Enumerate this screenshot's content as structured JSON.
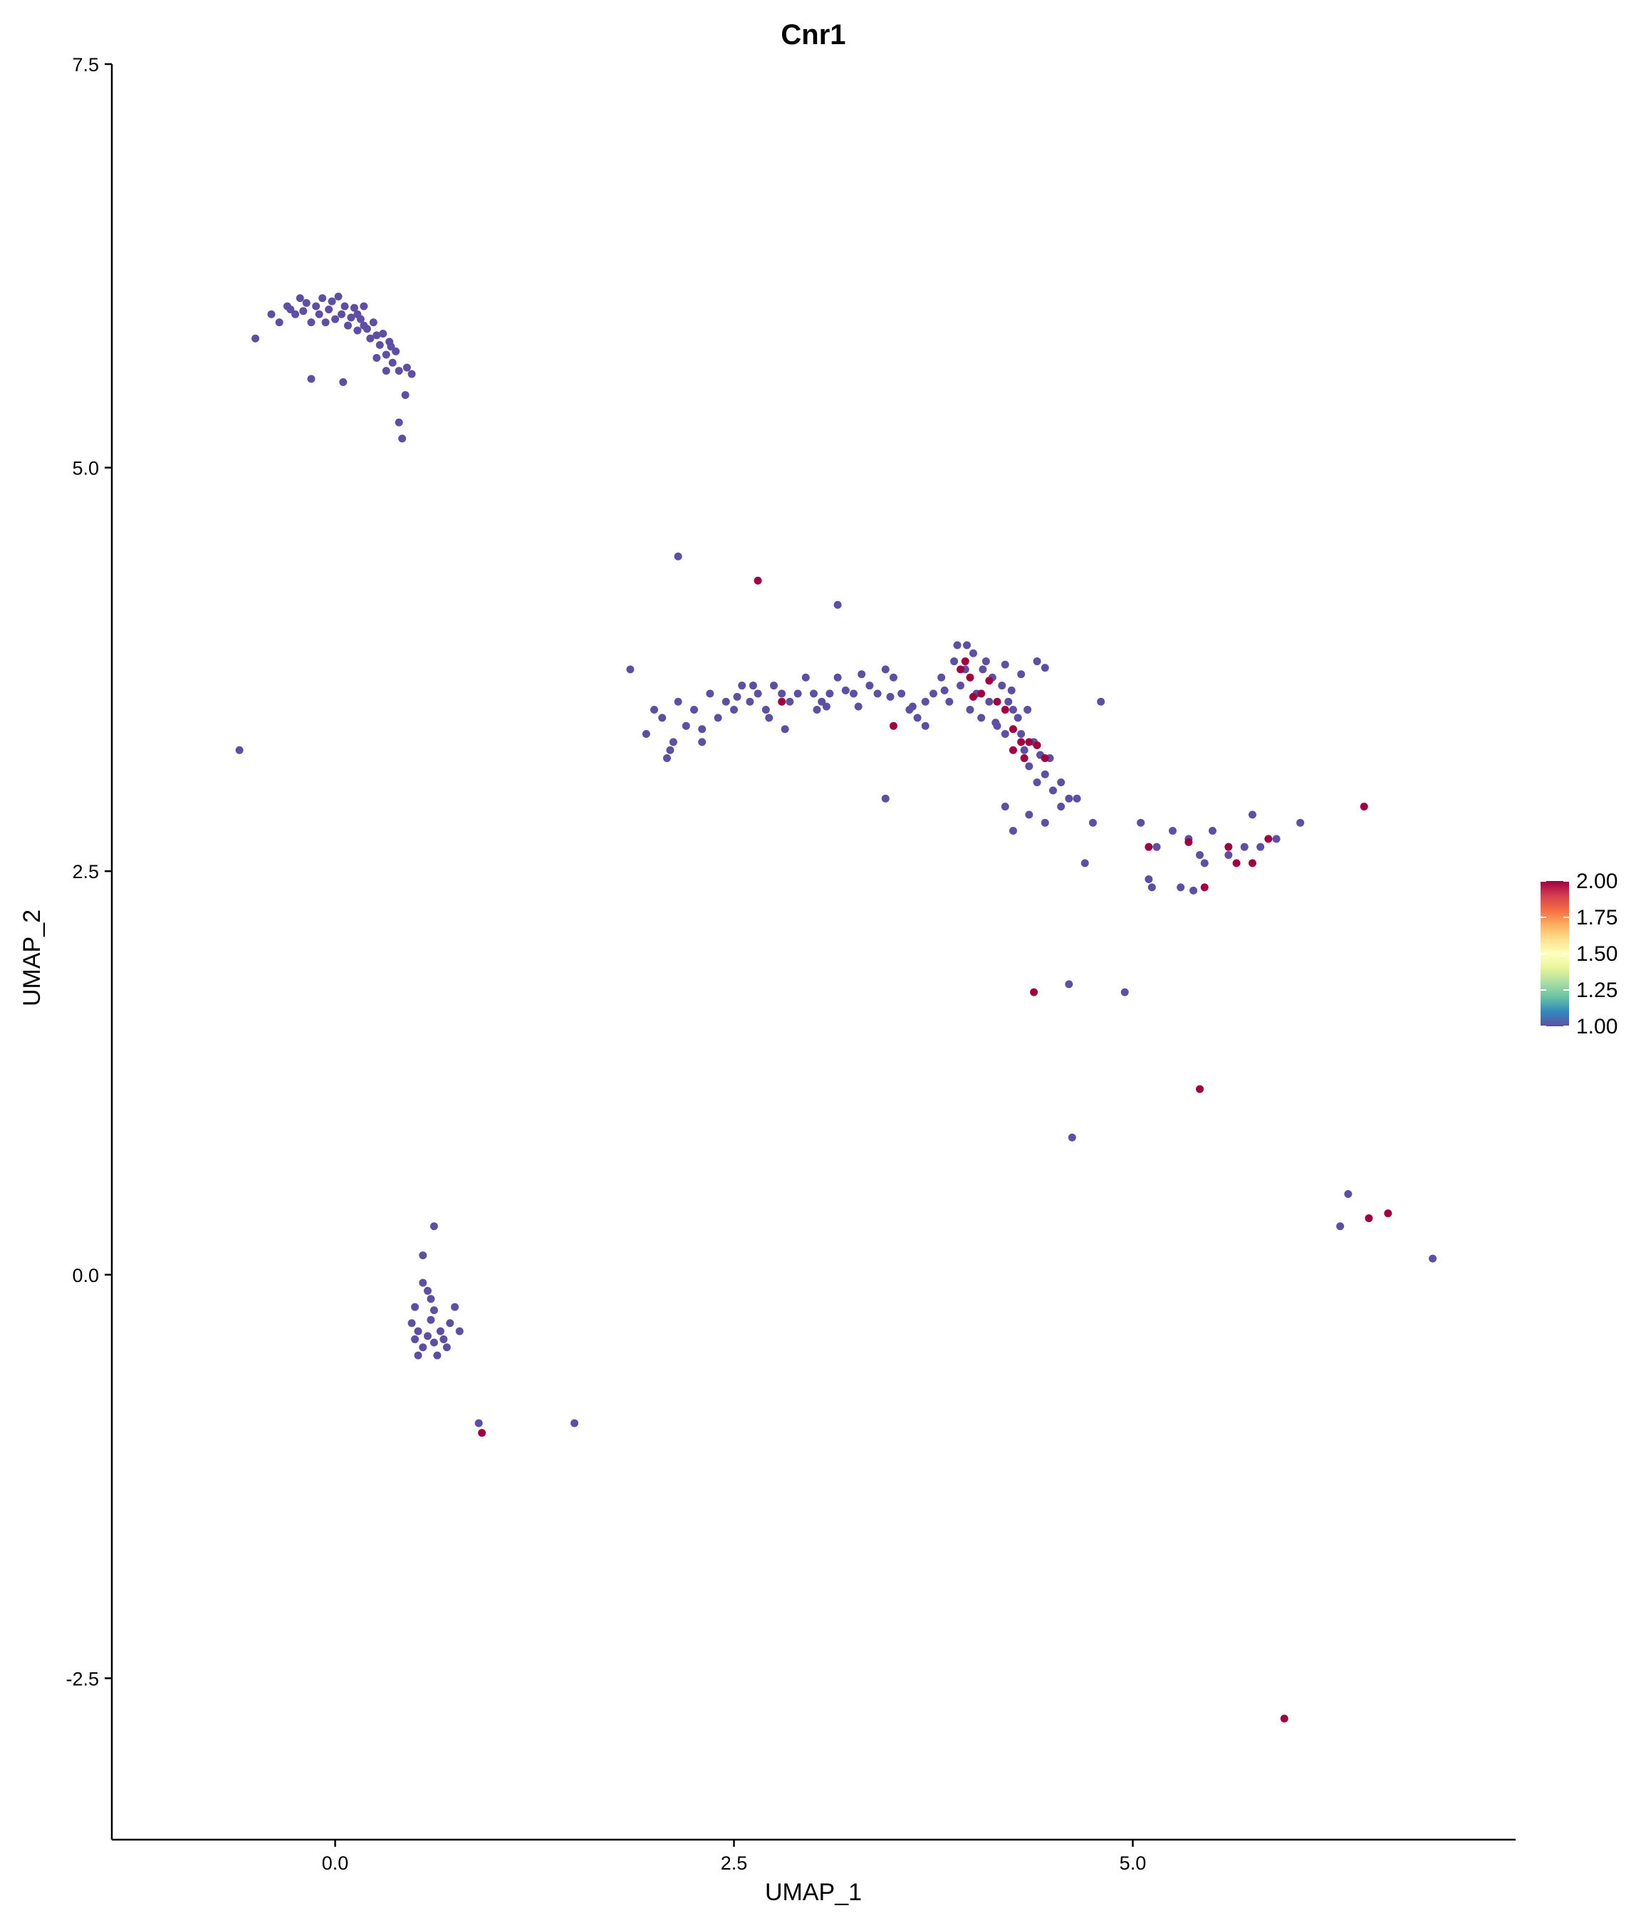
{
  "chart_data": {
    "type": "scatter",
    "title": "Cnr1",
    "xlabel": "UMAP_1",
    "ylabel": "UMAP_2",
    "xlim": [
      -1.4,
      7.4
    ],
    "ylim": [
      -3.5,
      7.5
    ],
    "xticks": [
      0.0,
      2.5,
      5.0
    ],
    "xtick_labels": [
      "0.0",
      "2.5",
      "5.0"
    ],
    "yticks": [
      -2.5,
      0.0,
      2.5,
      5.0,
      7.5
    ],
    "ytick_labels": [
      "-2.5",
      "0.0",
      "2.5",
      "5.0",
      "7.5"
    ],
    "grid": false,
    "legend": {
      "placement": "right",
      "type": "colorbar",
      "min": 1.0,
      "max": 2.0,
      "ticks": [
        1.0,
        1.25,
        1.5,
        1.75,
        2.0
      ],
      "tick_labels": [
        "1.00",
        "1.25",
        "1.50",
        "1.75",
        "2.00"
      ],
      "palette": [
        "#5e4fa2",
        "#3288bd",
        "#66c2a5",
        "#abdda4",
        "#e6f598",
        "#ffffbf",
        "#fee08b",
        "#fdae61",
        "#f46d43",
        "#d53e4f",
        "#9e0142"
      ]
    },
    "colors": {
      "low": "#5e4fa2",
      "high": "#9e0142"
    },
    "point_groups": [
      {
        "expression": 1.0,
        "points": [
          [
            -0.6,
            3.25
          ],
          [
            -0.5,
            5.8
          ],
          [
            -0.4,
            5.95
          ],
          [
            -0.35,
            5.9
          ],
          [
            -0.3,
            6.0
          ],
          [
            -0.25,
            5.95
          ],
          [
            -0.22,
            6.05
          ],
          [
            -0.2,
            5.97
          ],
          [
            -0.18,
            6.02
          ],
          [
            -0.15,
            5.9
          ],
          [
            -0.12,
            6.0
          ],
          [
            -0.1,
            5.95
          ],
          [
            -0.08,
            6.05
          ],
          [
            -0.06,
            5.9
          ],
          [
            -0.04,
            5.98
          ],
          [
            -0.02,
            6.03
          ],
          [
            0.0,
            5.92
          ],
          [
            0.02,
            6.06
          ],
          [
            0.04,
            5.95
          ],
          [
            0.06,
            6.0
          ],
          [
            0.08,
            5.88
          ],
          [
            0.1,
            5.93
          ],
          [
            0.12,
            5.99
          ],
          [
            0.14,
            5.85
          ],
          [
            0.16,
            5.92
          ],
          [
            0.18,
            6.0
          ],
          [
            0.2,
            5.86
          ],
          [
            0.22,
            5.8
          ],
          [
            0.24,
            5.9
          ],
          [
            0.26,
            5.82
          ],
          [
            0.28,
            5.76
          ],
          [
            0.3,
            5.83
          ],
          [
            0.32,
            5.7
          ],
          [
            0.34,
            5.78
          ],
          [
            0.36,
            5.65
          ],
          [
            0.38,
            5.72
          ],
          [
            0.4,
            5.6
          ],
          [
            0.45,
            5.62
          ],
          [
            0.48,
            5.58
          ],
          [
            0.4,
            5.28
          ],
          [
            0.42,
            5.18
          ],
          [
            -0.15,
            5.55
          ],
          [
            0.05,
            5.53
          ],
          [
            0.32,
            5.6
          ],
          [
            0.44,
            5.45
          ],
          [
            0.26,
            5.68
          ],
          [
            0.14,
            5.95
          ],
          [
            -0.28,
            5.98
          ],
          [
            0.35,
            5.75
          ],
          [
            0.18,
            5.88
          ],
          [
            1.85,
            3.75
          ],
          [
            1.95,
            3.35
          ],
          [
            2.0,
            3.5
          ],
          [
            2.05,
            3.45
          ],
          [
            2.1,
            3.25
          ],
          [
            2.08,
            3.2
          ],
          [
            2.12,
            3.3
          ],
          [
            2.15,
            3.55
          ],
          [
            2.2,
            3.4
          ],
          [
            2.25,
            3.5
          ],
          [
            2.3,
            3.3
          ],
          [
            2.35,
            3.6
          ],
          [
            2.4,
            3.45
          ],
          [
            2.45,
            3.55
          ],
          [
            2.5,
            3.5
          ],
          [
            2.55,
            3.65
          ],
          [
            2.6,
            3.55
          ],
          [
            2.62,
            3.65
          ],
          [
            2.65,
            3.6
          ],
          [
            2.7,
            3.5
          ],
          [
            2.72,
            3.45
          ],
          [
            2.75,
            3.65
          ],
          [
            2.8,
            3.6
          ],
          [
            2.85,
            3.55
          ],
          [
            2.9,
            3.6
          ],
          [
            2.95,
            3.7
          ],
          [
            3.0,
            3.6
          ],
          [
            3.02,
            3.5
          ],
          [
            3.05,
            3.55
          ],
          [
            3.1,
            3.6
          ],
          [
            3.15,
            3.7
          ],
          [
            3.2,
            3.62
          ],
          [
            3.25,
            3.6
          ],
          [
            3.3,
            3.72
          ],
          [
            3.35,
            3.65
          ],
          [
            3.4,
            3.6
          ],
          [
            3.45,
            3.75
          ],
          [
            3.5,
            3.7
          ],
          [
            3.55,
            3.6
          ],
          [
            3.6,
            3.5
          ],
          [
            3.65,
            3.45
          ],
          [
            3.7,
            3.55
          ],
          [
            3.75,
            3.6
          ],
          [
            3.8,
            3.7
          ],
          [
            3.85,
            3.55
          ],
          [
            3.88,
            3.8
          ],
          [
            3.9,
            3.9
          ],
          [
            3.92,
            3.65
          ],
          [
            3.95,
            3.75
          ],
          [
            3.98,
            3.5
          ],
          [
            4.0,
            3.85
          ],
          [
            4.02,
            3.6
          ],
          [
            4.05,
            3.45
          ],
          [
            4.08,
            3.8
          ],
          [
            4.1,
            3.55
          ],
          [
            4.12,
            3.7
          ],
          [
            4.15,
            3.4
          ],
          [
            4.18,
            3.65
          ],
          [
            4.2,
            3.35
          ],
          [
            4.22,
            3.55
          ],
          [
            4.25,
            3.5
          ],
          [
            4.28,
            3.45
          ],
          [
            4.3,
            3.35
          ],
          [
            4.32,
            3.25
          ],
          [
            4.35,
            3.15
          ],
          [
            4.38,
            3.3
          ],
          [
            4.4,
            3.05
          ],
          [
            4.45,
            3.1
          ],
          [
            4.48,
            3.2
          ],
          [
            4.5,
            3.0
          ],
          [
            4.55,
            3.05
          ],
          [
            4.6,
            2.95
          ],
          [
            4.2,
            3.78
          ],
          [
            4.3,
            3.72
          ],
          [
            4.4,
            3.8
          ],
          [
            4.45,
            3.76
          ],
          [
            4.2,
            2.9
          ],
          [
            4.25,
            2.75
          ],
          [
            4.35,
            2.85
          ],
          [
            4.45,
            2.8
          ],
          [
            4.55,
            2.9
          ],
          [
            4.65,
            2.95
          ],
          [
            4.7,
            2.55
          ],
          [
            4.8,
            3.55
          ],
          [
            4.75,
            2.8
          ],
          [
            3.45,
            2.95
          ],
          [
            3.15,
            4.15
          ],
          [
            2.15,
            4.45
          ],
          [
            3.7,
            3.4
          ],
          [
            3.82,
            3.62
          ],
          [
            3.96,
            3.9
          ],
          [
            4.06,
            3.75
          ],
          [
            4.14,
            3.42
          ],
          [
            4.24,
            3.62
          ],
          [
            4.34,
            3.5
          ],
          [
            4.42,
            3.22
          ],
          [
            2.3,
            3.38
          ],
          [
            2.52,
            3.58
          ],
          [
            2.82,
            3.38
          ],
          [
            3.08,
            3.52
          ],
          [
            3.28,
            3.52
          ],
          [
            3.48,
            3.58
          ],
          [
            3.62,
            3.52
          ],
          [
            5.05,
            2.8
          ],
          [
            5.1,
            2.45
          ],
          [
            5.12,
            2.4
          ],
          [
            5.15,
            2.65
          ],
          [
            5.25,
            2.75
          ],
          [
            5.3,
            2.4
          ],
          [
            5.35,
            2.7
          ],
          [
            5.38,
            2.38
          ],
          [
            5.42,
            2.6
          ],
          [
            5.45,
            2.55
          ],
          [
            5.5,
            2.75
          ],
          [
            5.6,
            2.6
          ],
          [
            5.75,
            2.85
          ],
          [
            5.7,
            2.65
          ],
          [
            5.8,
            2.65
          ],
          [
            5.9,
            2.7
          ],
          [
            6.05,
            2.8
          ],
          [
            4.6,
            1.8
          ],
          [
            4.95,
            1.75
          ],
          [
            4.62,
            0.85
          ],
          [
            6.35,
            0.5
          ],
          [
            6.3,
            0.3
          ],
          [
            6.88,
            0.1
          ],
          [
            0.62,
            0.3
          ],
          [
            0.55,
            0.12
          ],
          [
            0.5,
            -0.2
          ],
          [
            0.48,
            -0.3
          ],
          [
            0.52,
            -0.35
          ],
          [
            0.55,
            -0.45
          ],
          [
            0.58,
            -0.38
          ],
          [
            0.6,
            -0.28
          ],
          [
            0.62,
            -0.42
          ],
          [
            0.64,
            -0.5
          ],
          [
            0.66,
            -0.35
          ],
          [
            0.68,
            -0.4
          ],
          [
            0.7,
            -0.45
          ],
          [
            0.72,
            -0.3
          ],
          [
            0.75,
            -0.2
          ],
          [
            0.78,
            -0.35
          ],
          [
            0.55,
            -0.05
          ],
          [
            0.58,
            -0.1
          ],
          [
            0.6,
            -0.15
          ],
          [
            0.62,
            -0.22
          ],
          [
            0.52,
            -0.5
          ],
          [
            0.5,
            -0.4
          ],
          [
            0.9,
            -0.92
          ],
          [
            1.5,
            -0.92
          ]
        ]
      },
      {
        "expression": 2.0,
        "points": [
          [
            2.65,
            4.3
          ],
          [
            2.8,
            3.55
          ],
          [
            3.5,
            3.4
          ],
          [
            3.95,
            3.8
          ],
          [
            3.98,
            3.7
          ],
          [
            4.0,
            3.58
          ],
          [
            4.05,
            3.6
          ],
          [
            4.1,
            3.68
          ],
          [
            4.15,
            3.55
          ],
          [
            4.2,
            3.5
          ],
          [
            4.25,
            3.38
          ],
          [
            4.3,
            3.3
          ],
          [
            4.32,
            3.2
          ],
          [
            4.25,
            3.25
          ],
          [
            4.35,
            3.3
          ],
          [
            4.4,
            3.28
          ],
          [
            4.45,
            3.2
          ],
          [
            3.92,
            3.75
          ],
          [
            5.1,
            2.65
          ],
          [
            5.35,
            2.68
          ],
          [
            5.45,
            2.4
          ],
          [
            5.6,
            2.65
          ],
          [
            5.65,
            2.55
          ],
          [
            5.75,
            2.55
          ],
          [
            5.85,
            2.7
          ],
          [
            6.45,
            2.9
          ],
          [
            4.38,
            1.75
          ],
          [
            5.42,
            1.15
          ],
          [
            6.48,
            0.35
          ],
          [
            6.6,
            0.38
          ],
          [
            5.95,
            -2.75
          ],
          [
            0.92,
            -0.98
          ]
        ]
      }
    ]
  }
}
